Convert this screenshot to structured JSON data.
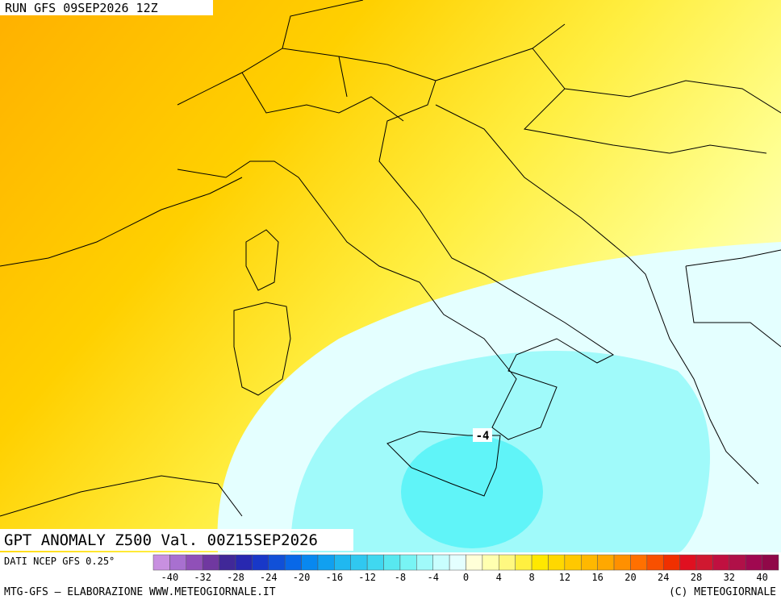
{
  "header": {
    "run": "RUN GFS 09SEP2026 12Z"
  },
  "map": {
    "title": "GPT ANOMALY Z500 Val. 00Z15SEP2026",
    "contour_label": "-4"
  },
  "colorbar": {
    "source": "DATI NCEP GFS 0.25°",
    "labels": [
      "-40",
      "-32",
      "-28",
      "-24",
      "-20",
      "-16",
      "-12",
      "-8",
      "-4",
      "0",
      "4",
      "8",
      "12",
      "16",
      "20",
      "24",
      "28",
      "32",
      "40"
    ],
    "colors": [
      "#c890e0",
      "#a870d0",
      "#9050b8",
      "#7038a0",
      "#402898",
      "#2828b0",
      "#1838c8",
      "#1050d8",
      "#0868e8",
      "#0888f0",
      "#10a0f0",
      "#20b8f0",
      "#30c8f0",
      "#40d8f0",
      "#58e8f0",
      "#78f4f4",
      "#a0fafa",
      "#c8fefe",
      "#e4ffff",
      "#ffffd8",
      "#ffffb0",
      "#fff880",
      "#fff040",
      "#ffe800",
      "#ffd800",
      "#ffc800",
      "#ffb800",
      "#ffa800",
      "#ff9000",
      "#ff7000",
      "#f85000",
      "#f03000",
      "#e01020",
      "#d01830",
      "#c01040",
      "#b01048",
      "#a00850",
      "#900848"
    ]
  },
  "footer": {
    "left": "MTG-GFS — ELABORAZIONE WWW.METEOGIORNALE.IT",
    "right": "(C) METEOGIORNALE"
  }
}
